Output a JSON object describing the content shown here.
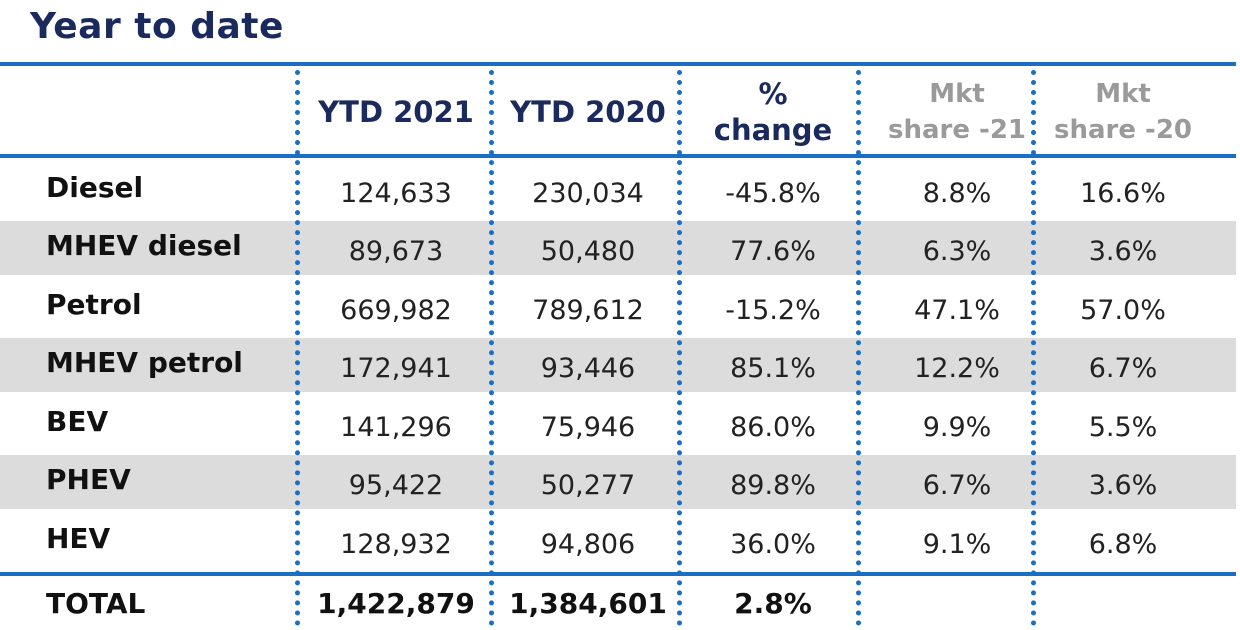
{
  "title": "Year to date",
  "chart_data": {
    "type": "table",
    "columns": [
      "",
      "YTD 2021",
      "YTD 2020",
      "% change",
      "Mkt share -21",
      "Mkt share -20"
    ],
    "header_lines": [
      [],
      [
        "YTD 2021"
      ],
      [
        "YTD 2020"
      ],
      [
        "%",
        "change"
      ],
      [
        "Mkt",
        "share -21"
      ],
      [
        "Mkt",
        "share -20"
      ]
    ],
    "rows": [
      {
        "label": "Diesel",
        "values": [
          "124,633",
          "230,034",
          "-45.8%",
          "8.8%",
          "16.6%"
        ]
      },
      {
        "label": "MHEV diesel",
        "values": [
          "89,673",
          "50,480",
          "77.6%",
          "6.3%",
          "3.6%"
        ]
      },
      {
        "label": "Petrol",
        "values": [
          "669,982",
          "789,612",
          "-15.2%",
          "47.1%",
          "57.0%"
        ]
      },
      {
        "label": "MHEV petrol",
        "values": [
          "172,941",
          "93,446",
          "85.1%",
          "12.2%",
          "6.7%"
        ]
      },
      {
        "label": "BEV",
        "values": [
          "141,296",
          "75,946",
          "86.0%",
          "9.9%",
          "5.5%"
        ]
      },
      {
        "label": "PHEV",
        "values": [
          "95,422",
          "50,277",
          "89.8%",
          "6.7%",
          "3.6%"
        ]
      },
      {
        "label": "HEV",
        "values": [
          "128,932",
          "94,806",
          "36.0%",
          "9.1%",
          "6.8%"
        ]
      }
    ],
    "total": {
      "label": "TOTAL",
      "values": [
        "1,422,879",
        "1,384,601",
        "2.8%",
        "",
        ""
      ]
    }
  },
  "colors": {
    "accent_line": "#1a6fc4",
    "title_text": "#1b2a5c",
    "stripe": "#dcdcdc",
    "muted_header": "#9a9a9a"
  }
}
